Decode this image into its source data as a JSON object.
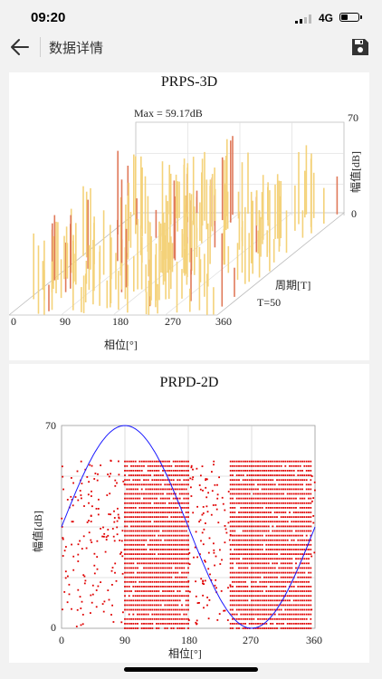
{
  "status": {
    "time": "09:20",
    "network": "4G",
    "battery_level": 0.35
  },
  "nav": {
    "title": "数据详情",
    "back_icon": "arrow-left-icon",
    "save_icon": "save-icon"
  },
  "chart_data": [
    {
      "type": "bar",
      "title": "PRPS-3D",
      "annotation": "Max = 59.17dB",
      "xlabel": "相位[°]",
      "ylabel": "周期[T]",
      "zlabel": "幅值[dB]",
      "period_label": "T=50",
      "x_ticks": [
        "0",
        "90",
        "180",
        "270",
        "360"
      ],
      "z_ticks": [
        "70",
        "0"
      ],
      "xlim": [
        0,
        360
      ],
      "zlim": [
        0,
        70
      ],
      "max_value": 59.17,
      "colors": {
        "bar": "#f4d27a",
        "peak": "#e0795a"
      }
    },
    {
      "type": "scatter",
      "title": "PRPD-2D",
      "xlabel": "相位[°]",
      "ylabel": "幅值[dB]",
      "x_ticks": [
        "0",
        "90",
        "180",
        "270",
        "360"
      ],
      "y_ticks": [
        "70",
        "0"
      ],
      "xlim": [
        0,
        360
      ],
      "ylim": [
        0,
        70
      ],
      "reference_curve": "sine",
      "dense_bands_deg": [
        [
          90,
          180
        ],
        [
          240,
          355
        ]
      ],
      "band_top_db": 58,
      "colors": {
        "points": "#e00000",
        "curve": "#1a1aff",
        "grid": "#c8c8c8"
      }
    }
  ]
}
